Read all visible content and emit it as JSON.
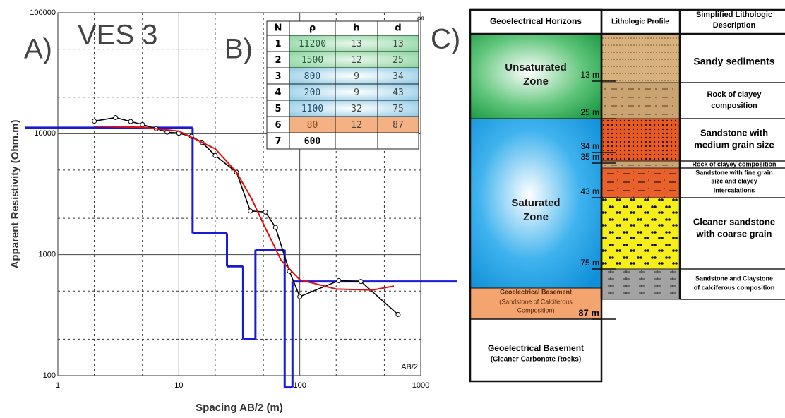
{
  "chart_data": {
    "type": "line",
    "panel_label": "A)",
    "title": "VES 3",
    "x_label": "Spacing AB/2 (m)",
    "y_label": "Apparent Resistivity (Ohm.m)",
    "x_annotation": "AB/2",
    "y_annotation": "ρa",
    "log_x": true,
    "log_y": true,
    "grid": true,
    "xlim": [
      1,
      1000
    ],
    "ylim": [
      100,
      100000
    ],
    "xticks": [
      1,
      10,
      100,
      1000
    ],
    "yticks": [
      100,
      1000,
      10000,
      100000
    ],
    "x_minor_grid": [
      2,
      5,
      20,
      50,
      200,
      500
    ],
    "y_minor_grid": [
      200,
      500,
      2000,
      5000,
      20000,
      50000
    ],
    "series": [
      {
        "color": "#000000",
        "markers": true,
        "x": [
          2,
          3,
          4,
          5,
          6.5,
          8,
          10,
          12.7,
          15.5,
          20,
          30,
          39,
          52,
          63,
          82,
          100,
          210,
          320,
          650
        ],
        "values": [
          12700,
          13600,
          12600,
          11900,
          11000,
          10300,
          10100,
          9500,
          8500,
          6600,
          4800,
          2300,
          2250,
          1680,
          730,
          450,
          610,
          600,
          320
        ]
      },
      {
        "color": "#e01010",
        "markers": false,
        "x": [
          2,
          5,
          10,
          20,
          30,
          40,
          50,
          70,
          100,
          200,
          400,
          600
        ],
        "values": [
          11500,
          11300,
          10500,
          7500,
          4800,
          2900,
          1800,
          900,
          620,
          520,
          510,
          550
        ]
      }
    ],
    "model_panel_label": "B)",
    "model": {
      "color": "#1a1ad2",
      "columns": [
        "N",
        "ρ",
        "h",
        "d"
      ],
      "layers": [
        {
          "n": 1,
          "rho": 11200,
          "h": 13,
          "d": 13
        },
        {
          "n": 2,
          "rho": 1500,
          "h": 12,
          "d": 25
        },
        {
          "n": 3,
          "rho": 800,
          "h": 9,
          "d": 34
        },
        {
          "n": 4,
          "rho": 200,
          "h": 9,
          "d": 43
        },
        {
          "n": 5,
          "rho": 1100,
          "h": 32,
          "d": 75
        },
        {
          "n": 6,
          "rho": 80,
          "h": 12,
          "d": 87
        },
        {
          "n": 7,
          "rho": 600
        }
      ]
    }
  },
  "section": {
    "panel_label": "C)",
    "headers": [
      [
        "Geoelectrical Horizons"
      ],
      [
        "Lithologic Profile"
      ],
      [
        "Simplified Lithologic",
        "Description"
      ]
    ],
    "horizons": [
      {
        "lines": [
          "Unsaturated",
          "Zone"
        ]
      },
      {
        "lines": [
          "Saturated",
          "Zone"
        ]
      },
      {
        "lines": [
          "Geoelectrical Basement",
          "(Sandstone of Calciferous",
          "Composition)"
        ]
      },
      {
        "lines": [
          "Geoelectrical Basement",
          "(Cleaner Carbonate Rocks)"
        ]
      }
    ],
    "depths": [
      "13 m",
      "25 m",
      "34 m",
      "35 m",
      "43 m",
      "75 m",
      "87 m"
    ],
    "lithology": [
      {
        "lines": [
          "Sandy sediments"
        ]
      },
      {
        "lines": [
          "Rock of clayey",
          "composition"
        ]
      },
      {
        "lines": [
          "Sandstone with",
          "medium grain size"
        ]
      },
      {
        "lines": [
          "Rock of clayey composition"
        ]
      },
      {
        "lines": [
          "Sandstone with fine grain",
          "size and clayey",
          "intercalations"
        ]
      },
      {
        "lines": [
          "Cleaner sandstone",
          "with coarse grain"
        ]
      },
      {
        "lines": [
          "Sandstone and Claystone",
          "of calciferous composition"
        ]
      }
    ]
  }
}
